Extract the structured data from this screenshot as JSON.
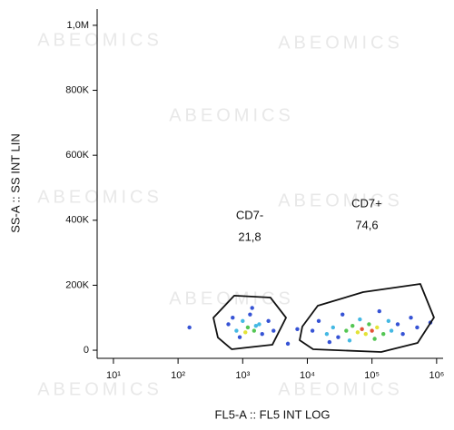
{
  "chart_data": {
    "type": "scatter",
    "xlabel": "FL5-A :: FL5 INT LOG",
    "ylabel": "SS-A :: SS INT LIN",
    "watermark": "ABEOMICS",
    "xscale": "log",
    "xlim": [
      5.6,
      1260000
    ],
    "ylim": [
      -25000,
      1050000
    ],
    "xticks": [
      {
        "value": 10,
        "label": "10¹"
      },
      {
        "value": 100,
        "label": "10²"
      },
      {
        "value": 1000,
        "label": "10³"
      },
      {
        "value": 10000,
        "label": "10⁴"
      },
      {
        "value": 100000,
        "label": "10⁵"
      },
      {
        "value": 1000000,
        "label": "10⁶"
      }
    ],
    "yticks": [
      0,
      {
        "value": 200000,
        "label": "200K"
      },
      {
        "value": 400000,
        "label": "400K"
      },
      {
        "value": 600000,
        "label": "600K"
      },
      {
        "value": 800000,
        "label": "800K"
      },
      {
        "value": 1000000,
        "label": "1,0M"
      }
    ],
    "points": {
      "x": [
        600,
        800,
        1000,
        1200,
        1500,
        1800,
        2000,
        1300,
        900,
        2500,
        1100,
        1600,
        700,
        3000,
        1400,
        12000,
        15000,
        20000,
        25000,
        30000,
        40000,
        50000,
        60000,
        70000,
        80000,
        90000,
        100000,
        120000,
        150000,
        180000,
        200000,
        250000,
        300000,
        400000,
        500000,
        35000,
        45000,
        65000,
        110000,
        130000,
        22000,
        150,
        7000,
        800000,
        5000
      ],
      "y": [
        80000,
        60000,
        90000,
        70000,
        60000,
        80000,
        50000,
        110000,
        40000,
        90000,
        55000,
        75000,
        100000,
        60000,
        130000,
        60000,
        90000,
        50000,
        70000,
        40000,
        60000,
        75000,
        55000,
        65000,
        50000,
        80000,
        60000,
        70000,
        50000,
        90000,
        60000,
        80000,
        50000,
        100000,
        70000,
        110000,
        30000,
        95000,
        35000,
        120000,
        25000,
        70000,
        65000,
        85000,
        20000
      ],
      "colors": [
        "#2040d0",
        "#30b0e0",
        "#30b0e0",
        "#40c040",
        "#40c040",
        "#30b0e0",
        "#2040d0",
        "#2040d0",
        "#2040d0",
        "#2040d0",
        "#e0e020",
        "#30b0e0",
        "#2040d0",
        "#2040d0",
        "#2040d0",
        "#2040d0",
        "#2040d0",
        "#30b0e0",
        "#30b0e0",
        "#2040d0",
        "#40c040",
        "#40c040",
        "#e0e020",
        "#e04020",
        "#e0e020",
        "#40c040",
        "#e04020",
        "#e0e020",
        "#40c040",
        "#30b0e0",
        "#30b0e0",
        "#2040d0",
        "#2040d0",
        "#2040d0",
        "#2040d0",
        "#2040d0",
        "#30b0e0",
        "#30b0e0",
        "#40c040",
        "#2040d0",
        "#2040d0",
        "#2040d0",
        "#2040d0",
        "#2040d0",
        "#2040d0"
      ]
    },
    "gates": [
      {
        "name": "CD7-",
        "value": 21.8,
        "value_label": "21,8",
        "x": [
          352,
          740,
          2690,
          4680,
          2880,
          676,
          413
        ],
        "y": [
          100000,
          168000,
          162000,
          100000,
          17000,
          3000,
          39000
        ]
      },
      {
        "name": "CD7+",
        "value": 74.6,
        "value_label": "74,6",
        "x": [
          8360,
          14500,
          73000,
          560000,
          910000,
          508000,
          139000,
          12300,
          7600
        ],
        "y": [
          72700,
          137000,
          178800,
          204000,
          100600,
          22500,
          -5500,
          2900,
          30800
        ]
      }
    ]
  }
}
